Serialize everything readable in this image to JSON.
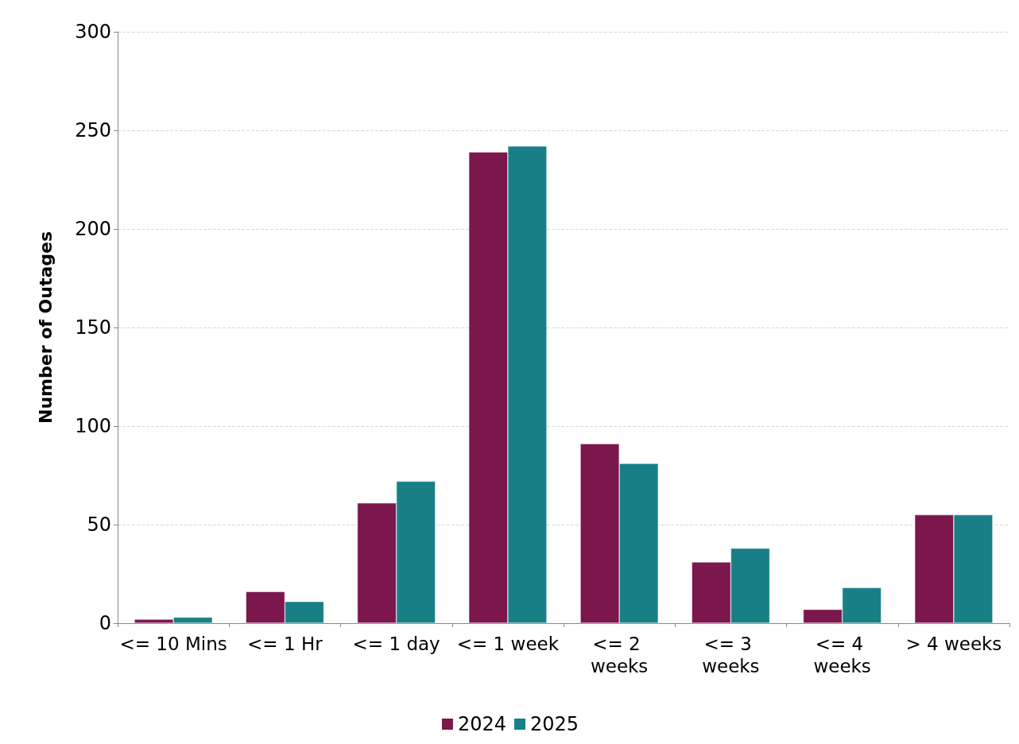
{
  "chart_data": {
    "type": "bar",
    "ylabel": "Number of Outages",
    "categories": [
      "<= 10 Mins",
      "<= 1 Hr",
      "<= 1 day",
      "<= 1 week",
      "<= 2 weeks",
      "<= 3 weeks",
      "<= 4 weeks",
      "> 4 weeks"
    ],
    "series": [
      {
        "name": "2024",
        "color": "#7b174d",
        "values": [
          2,
          16,
          61,
          239,
          91,
          31,
          7,
          55
        ]
      },
      {
        "name": "2025",
        "color": "#197f87",
        "values": [
          3,
          11,
          72,
          242,
          81,
          38,
          18,
          55
        ]
      }
    ],
    "ylim": [
      0,
      300
    ],
    "yticks": [
      0,
      50,
      100,
      150,
      200,
      250,
      300
    ],
    "grid": "y",
    "legend": "bottom"
  }
}
